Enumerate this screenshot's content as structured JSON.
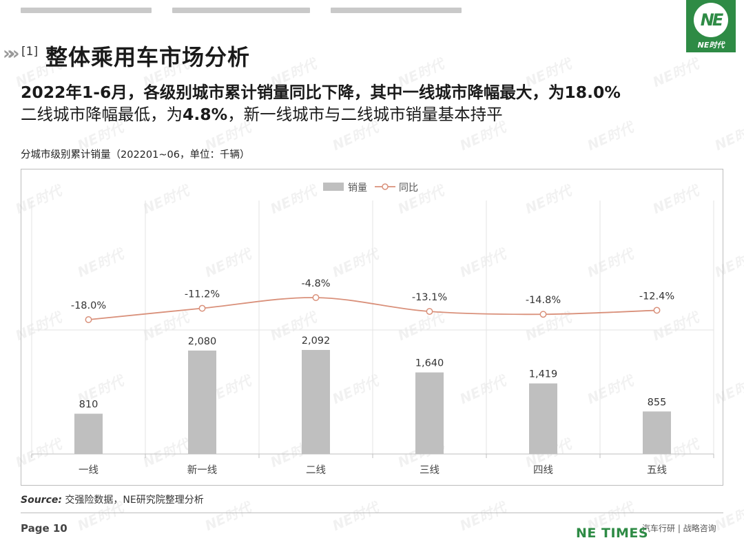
{
  "header": {
    "section_number": "[1]",
    "title": "整体乘用车市场分析",
    "logo_text": "NE时代"
  },
  "headline": {
    "line1": "2022年1-6月，各级别城市累计销量同比下降，其中一线城市降幅最大，为18.0%",
    "line2_a": "二线城市降幅最低，为",
    "line2_b": "4.8%",
    "line2_c": "，新一线城市与二线城市销量基本持平"
  },
  "chart_caption": "分城市级别累计销量（202201~06，单位：千辆）",
  "chart_data": {
    "type": "bar",
    "categories": [
      "一线",
      "新一线",
      "二线",
      "三线",
      "四线",
      "五线"
    ],
    "series": [
      {
        "name": "销量",
        "type": "bar",
        "values": [
          810,
          2080,
          2092,
          1640,
          1419,
          855
        ],
        "labels": [
          "810",
          "2,080",
          "2,092",
          "1,640",
          "1,419",
          "855"
        ],
        "color": "#bfbfbf"
      },
      {
        "name": "同比",
        "type": "line",
        "values": [
          -18.0,
          -11.2,
          -4.8,
          -13.1,
          -14.8,
          -12.4
        ],
        "labels": [
          "-18.0%",
          "-11.2%",
          "-4.8%",
          "-13.1%",
          "-14.8%",
          "-12.4%"
        ],
        "color": "#d9907a"
      }
    ],
    "legend": [
      "销量",
      "同比"
    ],
    "legend_position": "top-center",
    "grid": true
  },
  "source": {
    "label": "Source:",
    "text": "交强险数据，NE研究院整理分析"
  },
  "footer": {
    "page": "Page 10",
    "brand": "NE TIMES",
    "credit": "汽车行研 | 战略咨询"
  },
  "watermark_text": "NE时代"
}
